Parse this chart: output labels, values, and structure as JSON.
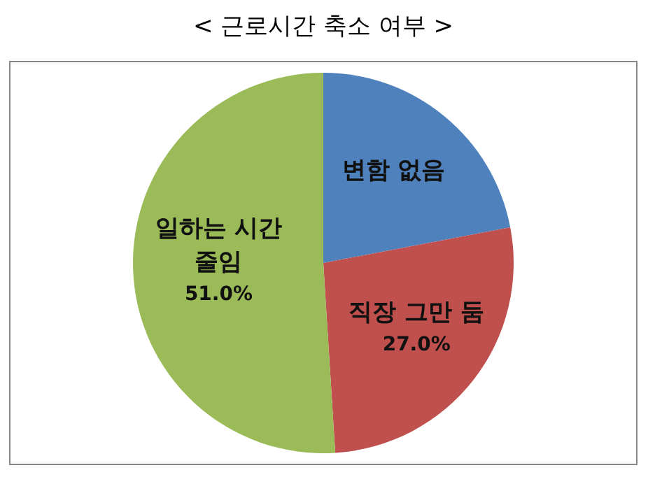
{
  "chart_data": {
    "type": "pie",
    "title": "< 근로시간 축소 여부 >",
    "categories": [
      "변함 없음",
      "직장 그만 둠",
      "일하는 시간 줄임"
    ],
    "values": [
      22,
      27,
      51
    ],
    "colors": [
      "#4f81bd",
      "#c0504d",
      "#9bbb59"
    ],
    "value_labels": [
      null,
      "27.0%",
      "51.0%"
    ],
    "legend": false
  }
}
